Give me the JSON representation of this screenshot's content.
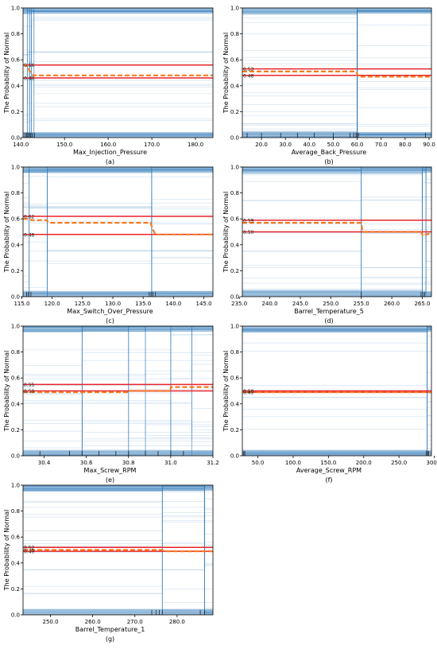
{
  "colors": {
    "ice_line": "#1f6fb3",
    "band_line": "#e8242b",
    "mean_line": "#f47b20",
    "rug": "#222222"
  },
  "chart_data": [
    {
      "type": "line",
      "label": "(a)",
      "xlabel": "Max_Injection_Pressure",
      "ylabel": "The Probability of Normal",
      "xlim": [
        140.5,
        184
      ],
      "ylim": [
        0,
        1
      ],
      "xticks": [
        140,
        150,
        160,
        170,
        180
      ],
      "yticks": [
        0.0,
        0.2,
        0.4,
        0.6,
        0.8,
        1.0
      ],
      "band": {
        "upper": 0.56,
        "lower": 0.46,
        "upper_label": "0.56",
        "lower_label": "0.46"
      },
      "series": [
        {
          "x": [
            140.5,
            141.6,
            141.9,
            142.3,
            142.8,
            184
          ],
          "y": [
            0.56,
            0.55,
            0.52,
            0.5,
            0.48,
            0.48
          ]
        }
      ],
      "ice_transitions": [
        141.5,
        142,
        142.4,
        143
      ],
      "rug": [
        141,
        141.3,
        141.6,
        141.9,
        142.2,
        142.6,
        143.1
      ]
    },
    {
      "type": "line",
      "label": "(b)",
      "xlabel": "Average_Back_Pressure",
      "ylabel": "The Probability of Normal",
      "xlim": [
        12,
        91
      ],
      "ylim": [
        0,
        1
      ],
      "xticks": [
        10,
        20,
        30,
        40,
        50,
        60,
        70,
        80,
        90
      ],
      "yticks": [
        0.0,
        0.2,
        0.4,
        0.6,
        0.8,
        1.0
      ],
      "band": {
        "upper": 0.53,
        "lower": 0.48,
        "upper_label": "0.53",
        "lower_label": "0.48"
      },
      "series": [
        {
          "x": [
            12,
            59.5,
            60.5,
            91
          ],
          "y": [
            0.51,
            0.51,
            0.47,
            0.47
          ]
        }
      ],
      "ice_transitions": [
        60
      ],
      "rug": [
        14,
        20,
        28,
        35,
        42,
        50,
        57,
        58.5,
        59.5,
        60,
        60.5,
        88.5
      ]
    },
    {
      "type": "line",
      "label": "(c)",
      "xlabel": "Max_Switch_Over_Pressure",
      "ylabel": "The Probability of Normal",
      "xlim": [
        115.2,
        146.5
      ],
      "ylim": [
        0,
        1
      ],
      "xticks": [
        115,
        120,
        125,
        130,
        135,
        140,
        145
      ],
      "yticks": [
        0.0,
        0.2,
        0.4,
        0.6,
        0.8,
        1.0
      ],
      "band": {
        "upper": 0.62,
        "lower": 0.48,
        "upper_label": "0.62",
        "lower_label": "0.48"
      },
      "series": [
        {
          "x": [
            115.2,
            116.2,
            116.6,
            119,
            119.5,
            136.2,
            136.6,
            137,
            146.5
          ],
          "y": [
            0.6,
            0.6,
            0.59,
            0.59,
            0.57,
            0.57,
            0.52,
            0.48,
            0.48
          ]
        }
      ],
      "ice_transitions": [
        116.2,
        119.2,
        136.4
      ],
      "rug": [
        115.8,
        116.1,
        116.5,
        136,
        136.3,
        136.6,
        137
      ]
    },
    {
      "type": "line",
      "label": "(d)",
      "xlabel": "Barrel_Temperature_5",
      "ylabel": "The Probability of Normal",
      "xlim": [
        235.5,
        266.5
      ],
      "ylim": [
        0,
        1
      ],
      "xticks": [
        235,
        240,
        245,
        250,
        255,
        260,
        265
      ],
      "yticks": [
        0.0,
        0.2,
        0.4,
        0.6,
        0.8,
        1.0
      ],
      "band": {
        "upper": 0.59,
        "lower": 0.5,
        "upper_label": "0.59",
        "lower_label": "0.50"
      },
      "series": [
        {
          "x": [
            235.5,
            255,
            255.2,
            264.8,
            265.1,
            265.6,
            266.5
          ],
          "y": [
            0.57,
            0.57,
            0.5,
            0.5,
            0.47,
            0.48,
            0.49
          ]
        }
      ],
      "ice_transitions": [
        255,
        265,
        265.6
      ],
      "rug": [
        255,
        264.8,
        265.1,
        265.4
      ]
    },
    {
      "type": "line",
      "label": "(e)",
      "xlabel": "Max_Screw_RPM",
      "ylabel": "The Probability of Normal",
      "xlim": [
        30.3,
        31.2
      ],
      "ylim": [
        0,
        1
      ],
      "xticks": [
        30.4,
        30.6,
        30.8,
        31.0,
        31.2
      ],
      "yticks": [
        0.0,
        0.2,
        0.4,
        0.6,
        0.8,
        1.0
      ],
      "band": {
        "upper": 0.55,
        "lower": 0.5,
        "upper_label": "0.55",
        "lower_label": "0.50"
      },
      "series": [
        {
          "x": [
            30.3,
            30.8,
            30.8,
            31.0,
            31.0,
            31.2
          ],
          "y": [
            0.49,
            0.49,
            0.5,
            0.5,
            0.53,
            0.53
          ]
        }
      ],
      "ice_transitions": [
        30.58,
        30.8,
        30.88,
        31.0,
        31.1
      ],
      "rug": [
        30.38,
        30.52,
        30.58,
        30.66,
        30.74,
        30.8,
        30.88,
        30.94,
        31.0,
        31.06
      ]
    },
    {
      "type": "line",
      "label": "(f)",
      "xlabel": "Average_Screw_RPM",
      "ylabel": "The Probability of Normal",
      "xlim": [
        28,
        296
      ],
      "ylim": [
        0,
        1
      ],
      "xticks": [
        50,
        100,
        150,
        200,
        250,
        300
      ],
      "yticks": [
        0.0,
        0.2,
        0.4,
        0.6,
        0.8,
        1.0
      ],
      "band": {
        "upper": 0.5,
        "lower": 0.49,
        "upper_label": "0.50",
        "lower_label": "0.49"
      },
      "series": [
        {
          "x": [
            28,
            296
          ],
          "y": [
            0.49,
            0.49
          ]
        }
      ],
      "ice_transitions": [
        290
      ],
      "rug": [
        30,
        31.5,
        289,
        290.5,
        292
      ]
    },
    {
      "type": "line",
      "label": "(g)",
      "xlabel": "Barrel_Temperature_1",
      "ylabel": "The Probability of Normal",
      "xlim": [
        243.5,
        288.5
      ],
      "ylim": [
        0,
        1
      ],
      "xticks": [
        250,
        260,
        270,
        280
      ],
      "yticks": [
        0.0,
        0.2,
        0.4,
        0.6,
        0.8,
        1.0
      ],
      "band": {
        "upper": 0.52,
        "lower": 0.49,
        "upper_label": "0.52",
        "lower_label": "0.49"
      },
      "series": [
        {
          "x": [
            243.5,
            276.5,
            277,
            288.5
          ],
          "y": [
            0.5,
            0.5,
            0.49,
            0.49
          ]
        }
      ],
      "ice_transitions": [
        276.5,
        286.5
      ],
      "rug": [
        274,
        275,
        275.8,
        276.5,
        285.5,
        286.5
      ]
    }
  ]
}
